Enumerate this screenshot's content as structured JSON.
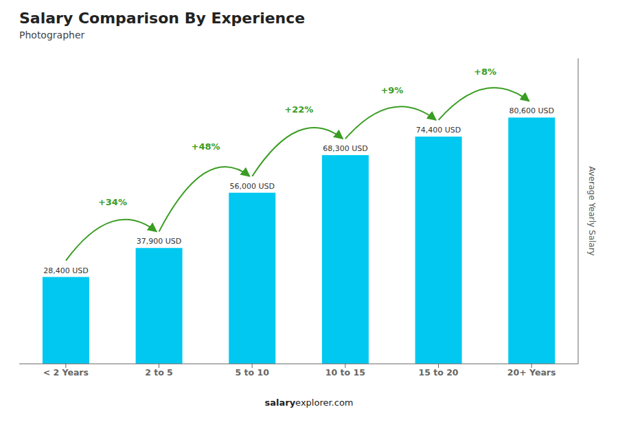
{
  "chart_data": {
    "type": "bar",
    "title": "Salary Comparison By Experience",
    "subtitle": "Photographer",
    "categories": [
      "< 2 Years",
      "2 to 5",
      "5 to 10",
      "10 to 15",
      "15 to 20",
      "20+ Years"
    ],
    "values": [
      28400,
      37900,
      56000,
      68300,
      74400,
      80600
    ],
    "value_labels": [
      "28,400 USD",
      "37,900 USD",
      "56,000 USD",
      "68,300 USD",
      "74,400 USD",
      "80,600 USD"
    ],
    "data_labels": true,
    "annotations": [
      "+34%",
      "+48%",
      "+22%",
      "+9%",
      "+8%"
    ],
    "ylabel": "Average Yearly Salary",
    "ylim": [
      0,
      100000
    ],
    "tick_labels": "x",
    "grid": false,
    "color": "#00c8f0",
    "footer": [
      "salary",
      "explorer.com"
    ]
  }
}
